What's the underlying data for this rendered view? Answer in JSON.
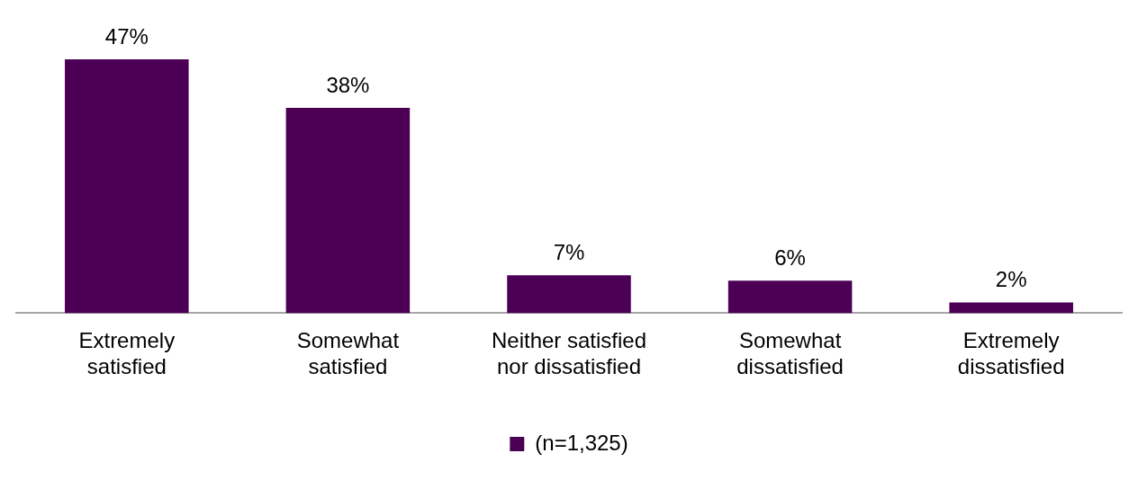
{
  "chart_data": {
    "type": "bar",
    "categories": [
      "Extremely satisfied",
      "Somewhat satisfied",
      "Neither satisfied nor dissatisfied",
      "Somewhat dissatisfied",
      "Extremely dissatisfied"
    ],
    "series": [
      {
        "name": "(n=1,325)",
        "color": "#4b0055",
        "values": [
          47,
          38,
          7,
          6,
          2
        ],
        "value_labels": [
          "47%",
          "38%",
          "7%",
          "6%",
          "2%"
        ]
      }
    ],
    "grid": false,
    "legend": "bottom",
    "tick_labels": "x"
  }
}
